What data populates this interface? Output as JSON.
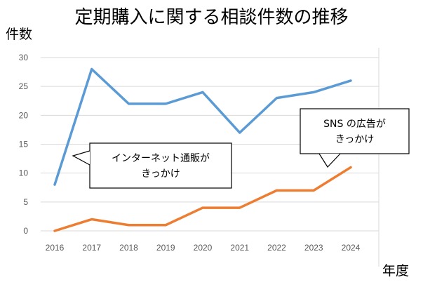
{
  "chart_data": {
    "type": "line",
    "title": "定期購入に関する相談件数の推移",
    "ylabel": "件数",
    "xlabel": "年度",
    "categories": [
      "2016",
      "2017",
      "2018",
      "2019",
      "2020",
      "2021",
      "2022",
      "2023",
      "2024"
    ],
    "ylim": [
      0,
      30
    ],
    "yticks": [
      0,
      5,
      10,
      15,
      20,
      25,
      30
    ],
    "grid": true,
    "series": [
      {
        "color": "#5B9BD5",
        "values": [
          8,
          28,
          22,
          22,
          24,
          17,
          23,
          24,
          26
        ]
      },
      {
        "color": "#ED7D31",
        "values": [
          0,
          2,
          1,
          1,
          4,
          4,
          7,
          7,
          11
        ]
      }
    ],
    "annotations": [
      {
        "lines": [
          "インターネット通販が",
          "きっかけ"
        ],
        "target_category": "2016",
        "target_value": 8
      },
      {
        "lines": [
          "SNS の広告が",
          "きっかけ"
        ],
        "target_category": "2024",
        "target_value": 11
      }
    ]
  }
}
